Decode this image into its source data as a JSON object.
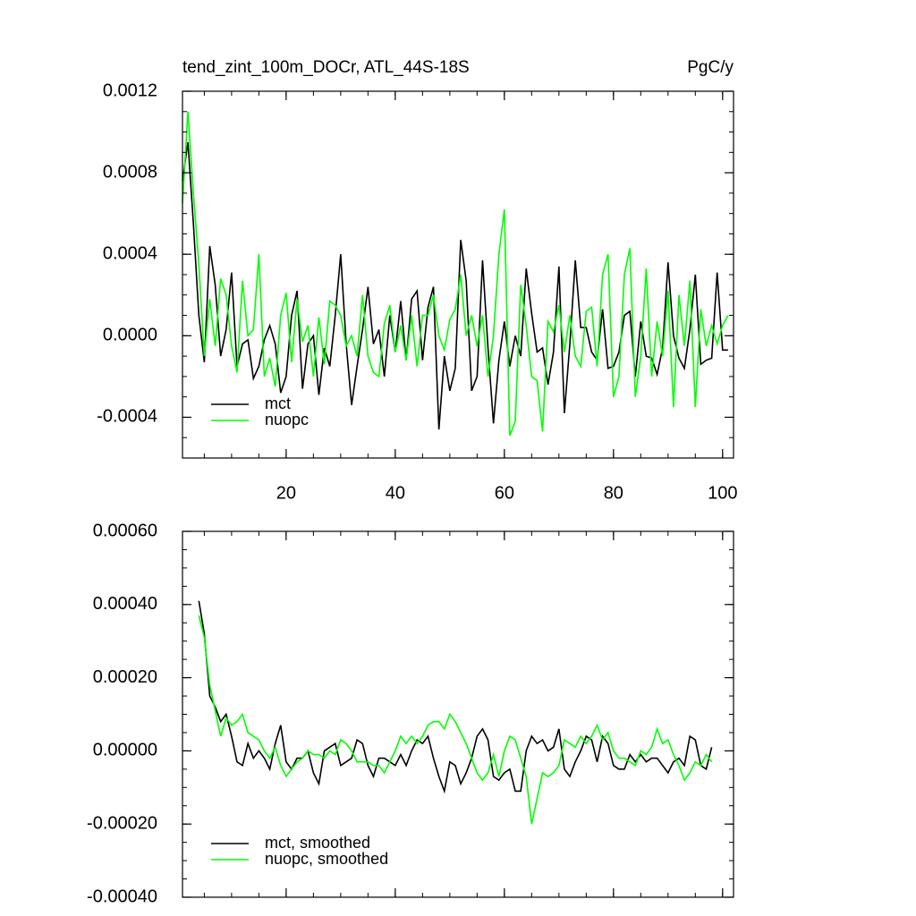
{
  "chart_data": [
    {
      "type": "line",
      "title": "tend_zint_100m_DOCr, ATL_44S-18S",
      "units": "PgC/y",
      "x": [
        1,
        2,
        3,
        4,
        5,
        6,
        7,
        8,
        9,
        10,
        11,
        12,
        13,
        14,
        15,
        16,
        17,
        18,
        19,
        20,
        21,
        22,
        23,
        24,
        25,
        26,
        27,
        28,
        29,
        30,
        31,
        32,
        33,
        34,
        35,
        36,
        37,
        38,
        39,
        40,
        41,
        42,
        43,
        44,
        45,
        46,
        47,
        48,
        49,
        50,
        51,
        52,
        53,
        54,
        55,
        56,
        57,
        58,
        59,
        60,
        61,
        62,
        63,
        64,
        65,
        66,
        67,
        68,
        69,
        70,
        71,
        72,
        73,
        74,
        75,
        76,
        77,
        78,
        79,
        80,
        81,
        82,
        83,
        84,
        85,
        86,
        87,
        88,
        89,
        90,
        91,
        92,
        93,
        94,
        95,
        96,
        97,
        98,
        99,
        100,
        101
      ],
      "series": [
        {
          "name": "mct",
          "color": "#000000",
          "values": [
            0.00076,
            0.00095,
            0.00055,
            0.0001,
            -0.00013,
            0.00044,
            0.00025,
            -0.0001,
            3e-05,
            0.00031,
            -0.00015,
            -4e-05,
            -2e-05,
            -0.00021,
            -0.00015,
            -2e-05,
            5e-05,
            -4e-05,
            -0.00028,
            -0.0002,
            0.0001,
            0.00022,
            -0.00026,
            -4e-05,
            0.0,
            -0.00029,
            -6e-05,
            -0.00015,
            0.0001,
            0.0004,
            -4e-05,
            -0.00034,
            -0.00015,
            3e-05,
            0.00024,
            -4e-05,
            3e-05,
            -0.0002,
            0.0001,
            -8e-05,
            0.00017,
            -0.00012,
            0.00018,
            0.00022,
            -0.00012,
            0.00014,
            0.00024,
            -0.00046,
            -0.0001,
            -0.00027,
            -0.00016,
            0.00047,
            0.00027,
            -0.00027,
            -0.0002,
            0.00037,
            -6e-05,
            -0.00043,
            -0.00012,
            7e-05,
            -0.00015,
            0.0,
            -0.0001,
            0.00033,
            0.00011,
            -8e-05,
            -6e-05,
            -0.00024,
            -8e-05,
            0.00034,
            -0.00038,
            -4e-05,
            0.00037,
            4e-05,
            4e-05,
            -8e-05,
            -0.00012,
            0.00013,
            -0.00016,
            -0.00015,
            -8e-05,
            0.0001,
            0.00012,
            -0.0002,
            7e-05,
            -0.0001,
            -0.00011,
            -0.00019,
            -6e-05,
            0.00036,
            0.0,
            -0.00011,
            -0.00016,
            3e-05,
            0.0003,
            -0.00014,
            -0.00012,
            -0.00011,
            0.00031,
            -7e-05,
            -7e-05
          ]
        },
        {
          "name": "nuopc",
          "color": "#00ff00",
          "values": [
            0.00065,
            0.0011,
            0.0007,
            0.00035,
            -0.0001,
            0.00018,
            -5e-05,
            0.00028,
            0.0002,
            -5e-05,
            -0.00018,
            0.00027,
            0.0,
            3e-05,
            0.0004,
            -0.0002,
            -0.00011,
            -0.00025,
            0.0001,
            0.00021,
            -0.00013,
            0.00018,
            -3e-05,
            5e-05,
            -0.0002,
            9e-05,
            -0.00014,
            0.00017,
            0.00015,
            0.0001,
            -5e-05,
            0.0,
            -0.0001,
            0.0002,
            -0.0001,
            -0.00018,
            -0.0002,
            6e-05,
            0.00015,
            -8e-05,
            5e-05,
            -0.00012,
            0.0001,
            -0.00015,
            0.0001,
            0.0001,
            0.0002,
            0.0,
            -7e-05,
            8e-05,
            0.00013,
            0.0003,
            0.0,
            0.0001,
            -5e-05,
            0.0001,
            -0.0002,
            0.0,
            0.0004,
            0.00062,
            -0.00049,
            -0.00042,
            0.00025,
            5e-05,
            -0.0002,
            -0.00022,
            -0.00047,
            7e-05,
            2e-05,
            0.00015,
            -8e-05,
            0.0001,
            -0.0001,
            -0.00015,
            0.00012,
            0.00014,
            -0.00015,
            0.0003,
            0.0004,
            -0.0003,
            -0.0002,
            0.0003,
            0.00043,
            -0.0003,
            -0.0001,
            0.00033,
            -0.0002,
            7e-05,
            -0.0001,
            0.00022,
            -0.00035,
            0.0002,
            -5e-05,
            0.00027,
            -0.00035,
            0.00013,
            -5e-05,
            5e-05,
            -4e-05,
            5e-05,
            0.0001
          ]
        }
      ],
      "xlim": [
        1,
        102
      ],
      "xticks": [
        20,
        40,
        60,
        80,
        100
      ],
      "xtick_labels": true,
      "ylim": [
        -0.0006,
        0.0012
      ],
      "yticks": [
        -0.0004,
        {
          "value": 0,
          "label": "0.0000"
        },
        0.0004,
        0.0008,
        0.0012
      ],
      "legend": "lower left",
      "grid": false
    },
    {
      "type": "line",
      "x": [
        4,
        5,
        6,
        7,
        8,
        9,
        10,
        11,
        12,
        13,
        14,
        15,
        16,
        17,
        18,
        19,
        20,
        21,
        22,
        23,
        24,
        25,
        26,
        27,
        28,
        29,
        30,
        31,
        32,
        33,
        34,
        35,
        36,
        37,
        38,
        39,
        40,
        41,
        42,
        43,
        44,
        45,
        46,
        47,
        48,
        49,
        50,
        51,
        52,
        53,
        54,
        55,
        56,
        57,
        58,
        59,
        60,
        61,
        62,
        63,
        64,
        65,
        66,
        67,
        68,
        69,
        70,
        71,
        72,
        73,
        74,
        75,
        76,
        77,
        78,
        79,
        80,
        81,
        82,
        83,
        84,
        85,
        86,
        87,
        88,
        89,
        90,
        91,
        92,
        93,
        94,
        95,
        96,
        97,
        98
      ],
      "series": [
        {
          "name": "mct, smoothed",
          "color": "#000000",
          "values": [
            0.00041,
            0.00032,
            0.00015,
            0.00012,
            8e-05,
            0.0001,
            4e-05,
            -3e-05,
            -4e-05,
            2e-05,
            -2e-05,
            0.0,
            -2e-05,
            -5e-05,
            2e-05,
            7e-05,
            -3e-05,
            -5e-05,
            -2e-05,
            -2e-05,
            0.0,
            -6e-05,
            -9e-05,
            0.0,
            1e-05,
            2e-05,
            -4e-05,
            -3e-05,
            -2e-05,
            3e-05,
            2e-05,
            -4e-05,
            -7e-05,
            -2e-05,
            -2e-05,
            -3e-05,
            -4e-05,
            -1e-05,
            -4e-05,
            0.0,
            3e-05,
            2e-05,
            4e-05,
            -2e-05,
            -7e-05,
            -0.00011,
            -3e-05,
            -4e-05,
            -9e-05,
            -6e-05,
            -2e-05,
            4e-05,
            6e-05,
            3e-05,
            -7e-05,
            -8e-05,
            -6e-05,
            -5e-05,
            -0.00011,
            -0.00011,
            0.0,
            4e-05,
            2e-05,
            3e-05,
            0.0,
            1e-05,
            6e-05,
            -5e-05,
            -7e-05,
            -3e-05,
            0.0,
            4e-05,
            3e-05,
            -3e-05,
            4e-05,
            2e-05,
            -4e-05,
            -5e-05,
            -5e-05,
            -1e-05,
            -3e-05,
            -1e-05,
            -3e-05,
            -2e-05,
            -2e-05,
            -4e-05,
            -6e-05,
            -3e-05,
            -2e-05,
            -4e-05,
            4e-05,
            3e-05,
            -4e-05,
            -5e-05,
            1e-05
          ]
        },
        {
          "name": "nuopc, smoothed",
          "color": "#00ff00",
          "values": [
            0.00037,
            0.00031,
            0.00018,
            0.00011,
            4e-05,
            9e-05,
            7e-05,
            8e-05,
            0.0001,
            5e-05,
            4e-05,
            3e-05,
            0.0,
            -2e-05,
            1e-05,
            -4e-05,
            -7e-05,
            -5e-05,
            -3e-05,
            -2e-05,
            0.0,
            -1e-05,
            -1e-05,
            -2e-05,
            0.0,
            -1e-05,
            3e-05,
            2e-05,
            0.0,
            -3e-05,
            -3e-05,
            -3e-05,
            -4e-05,
            -4e-05,
            -6e-05,
            -3e-05,
            0.0,
            4e-05,
            2e-05,
            4e-05,
            2e-05,
            4e-05,
            7e-05,
            8e-05,
            8e-05,
            6e-05,
            0.0001,
            8e-05,
            5e-05,
            2e-05,
            -2e-05,
            -6e-05,
            -8e-05,
            -6e-05,
            -1e-05,
            -7e-05,
            0.0,
            4e-05,
            3e-05,
            -2e-05,
            -7e-05,
            -0.0002,
            -0.00013,
            -6e-05,
            -7e-05,
            -6e-05,
            -4e-05,
            3e-05,
            2e-05,
            1e-05,
            4e-05,
            2e-05,
            4e-05,
            7e-05,
            3e-05,
            5e-05,
            0.0,
            -2e-05,
            -2e-05,
            -3e-05,
            -4e-05,
            0.0,
            -1e-05,
            1e-05,
            6e-05,
            2e-05,
            3e-05,
            -1e-05,
            -4e-05,
            -8e-05,
            -6e-05,
            -3e-05,
            -4e-05,
            -1e-05,
            -3e-05
          ]
        }
      ],
      "xlim": [
        1,
        102
      ],
      "xticks": [
        20,
        40,
        60,
        80,
        100
      ],
      "xtick_labels": false,
      "ylim": [
        -0.0004,
        0.0006
      ],
      "yticks": [
        {
          "value": -0.0004,
          "label": "-0.00040"
        },
        {
          "value": -0.0002,
          "label": "-0.00020"
        },
        {
          "value": 0,
          "label": "0.00000"
        },
        {
          "value": 0.0002,
          "label": "0.00020"
        },
        {
          "value": 0.0004,
          "label": "0.00040"
        },
        {
          "value": 0.0006,
          "label": "0.00060"
        }
      ],
      "legend": "lower left",
      "grid": false
    }
  ]
}
